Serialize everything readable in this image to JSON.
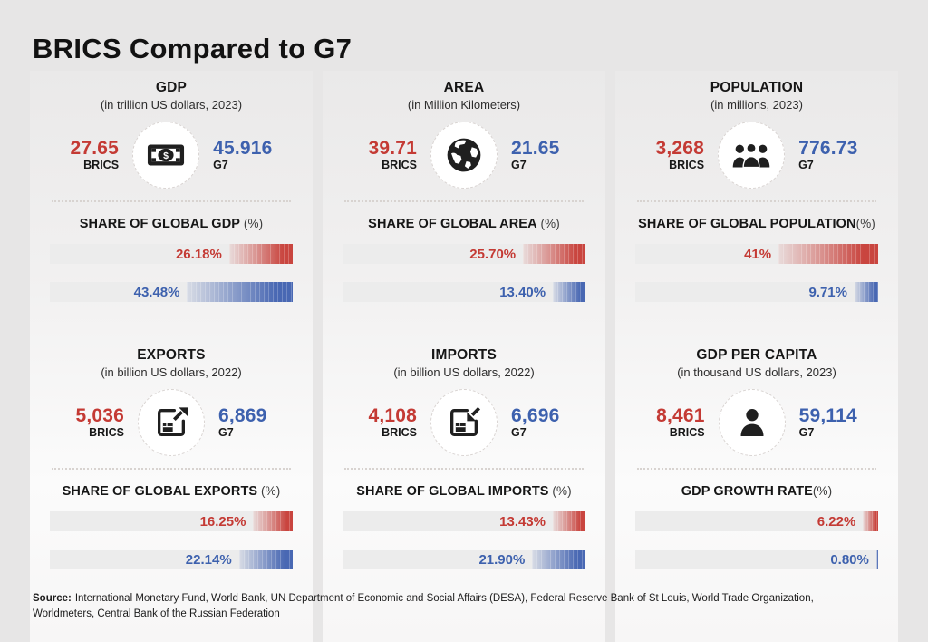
{
  "page": {
    "title": "BRICS Compared to G7",
    "source_label": "Source:",
    "source_text": "International Monetary Fund, World Bank, UN Department of Economic and Social Affairs (DESA), Federal Reserve Bank of St Louis, World Trade Organization, Worldmeters, Central Bank of the Russian Federation"
  },
  "colors": {
    "brics_red": "#c43a34",
    "g7_blue": "#3d61ae",
    "bar_red": "#c9453f",
    "bar_blue": "#4968b3",
    "bar_track": "#ececec",
    "ink": "#161616"
  },
  "chart_data": [
    {
      "type": "bar",
      "title": "GDP",
      "subtitle": "(in trillion US dollars, 2023)",
      "icon": "money-icon",
      "brics_value": "27.65",
      "brics_label": "BRICS",
      "g7_value": "45.916",
      "g7_label": "G7",
      "share_title": "SHARE OF GLOBAL GDP",
      "share_unit": " (%)",
      "bars": [
        {
          "name": "BRICS",
          "label": "26.18%",
          "value": 26.18
        },
        {
          "name": "G7",
          "label": "43.48%",
          "value": 43.48
        }
      ]
    },
    {
      "type": "bar",
      "title": "AREA",
      "subtitle": "(in Million Kilometers)",
      "icon": "globe-icon",
      "brics_value": "39.71",
      "brics_label": "BRICS",
      "g7_value": "21.65",
      "g7_label": "G7",
      "share_title": "SHARE OF GLOBAL AREA",
      "share_unit": " (%)",
      "bars": [
        {
          "name": "BRICS",
          "label": "25.70%",
          "value": 25.7
        },
        {
          "name": "G7",
          "label": "13.40%",
          "value": 13.4
        }
      ]
    },
    {
      "type": "bar",
      "title": "POPULATION",
      "subtitle": "(in millions, 2023)",
      "icon": "people-icon",
      "brics_value": "3,268",
      "brics_label": "BRICS",
      "g7_value": "776.73",
      "g7_label": "G7",
      "share_title": "SHARE OF GLOBAL POPULATION",
      "share_unit": "(%)",
      "bars": [
        {
          "name": "BRICS",
          "label": "41%",
          "value": 41
        },
        {
          "name": "G7",
          "label": "9.71%",
          "value": 9.71
        }
      ]
    },
    {
      "type": "bar",
      "title": "EXPORTS",
      "subtitle": "(in billion US dollars, 2022)",
      "icon": "export-box-icon",
      "brics_value": "5,036",
      "brics_label": "BRICS",
      "g7_value": "6,869",
      "g7_label": "G7",
      "share_title": "SHARE OF GLOBAL EXPORTS",
      "share_unit": " (%)",
      "bars": [
        {
          "name": "BRICS",
          "label": "16.25%",
          "value": 16.25
        },
        {
          "name": "G7",
          "label": "22.14%",
          "value": 22.14
        }
      ]
    },
    {
      "type": "bar",
      "title": "IMPORTS",
      "subtitle": "(in billion US dollars, 2022)",
      "icon": "import-box-icon",
      "brics_value": "4,108",
      "brics_label": "BRICS",
      "g7_value": "6,696",
      "g7_label": "G7",
      "share_title": "SHARE OF GLOBAL IMPORTS",
      "share_unit": " (%)",
      "bars": [
        {
          "name": "BRICS",
          "label": "13.43%",
          "value": 13.43
        },
        {
          "name": "G7",
          "label": "21.90%",
          "value": 21.9
        }
      ]
    },
    {
      "type": "bar",
      "title": "GDP PER CAPITA",
      "subtitle": "(in thousand US dollars, 2023)",
      "icon": "person-icon",
      "brics_value": "8,461",
      "brics_label": "BRICS",
      "g7_value": "59,114",
      "g7_label": "G7",
      "share_title": "GDP GROWTH RATE",
      "share_unit": "(%)",
      "bars": [
        {
          "name": "BRICS",
          "label": "6.22%",
          "value": 6.22
        },
        {
          "name": "G7",
          "label": "0.80%",
          "value": 0.8
        }
      ]
    }
  ]
}
